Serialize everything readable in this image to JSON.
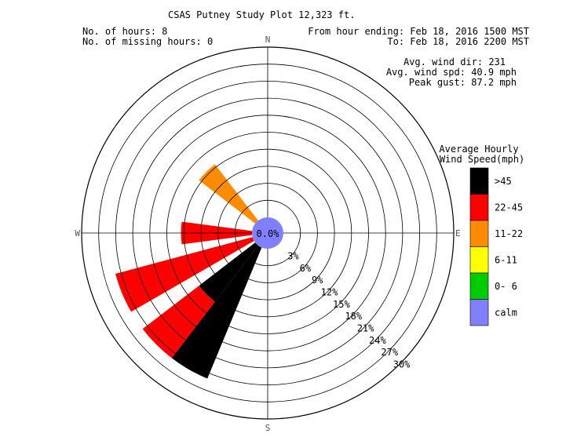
{
  "header": {
    "title": "CSAS Putney Study Plot 12,323 ft.",
    "hours_label": "No. of hours: 8",
    "missing_label": "No. of missing hours: 0",
    "from_label": "From hour ending: Feb 18, 2016 1500 MST",
    "to_label": "To: Feb 18, 2016 2200 MST",
    "avg_dir": "Avg. wind dir: 231",
    "avg_spd": "Avg. wind spd: 40.9 mph",
    "peak_gust": "Peak gust: 87.2 mph"
  },
  "chart_data": {
    "type": "wind-rose",
    "compass": [
      "N",
      "E",
      "S",
      "W"
    ],
    "ring_labels": [
      "3%",
      "6%",
      "9%",
      "12%",
      "15%",
      "18%",
      "21%",
      "24%",
      "27%",
      "30%"
    ],
    "calm_label": "0.0%",
    "rmax_percent": 30,
    "legend": {
      "title_line1": "Average Hourly",
      "title_line2": "Wind Speed(mph)",
      "items": [
        {
          "label": ">45",
          "color": "#000000"
        },
        {
          "label": "22-45",
          "color": "#ff0000"
        },
        {
          "label": "11-22",
          "color": "#ff8c00"
        },
        {
          "label": "6-11",
          "color": "#ffff00"
        },
        {
          "label": "0- 6",
          "color": "#00cc00"
        },
        {
          "label": "calm",
          "color": "#8080ff"
        }
      ]
    },
    "bins": [
      {
        "direction": 210,
        "segments": [
          {
            "class": ">45",
            "percent": 25.0
          }
        ]
      },
      {
        "direction": 225,
        "segments": [
          {
            "class": ">45",
            "percent": 12.5
          },
          {
            "class": "22-45",
            "percent": 12.5
          }
        ]
      },
      {
        "direction": 247.5,
        "segments": [
          {
            "class": "22-45",
            "percent": 25.0
          }
        ]
      },
      {
        "direction": 270,
        "segments": [
          {
            "class": "22-45",
            "percent": 12.5
          }
        ]
      },
      {
        "direction": 315,
        "segments": [
          {
            "class": "11-22",
            "percent": 12.5
          }
        ]
      }
    ]
  }
}
